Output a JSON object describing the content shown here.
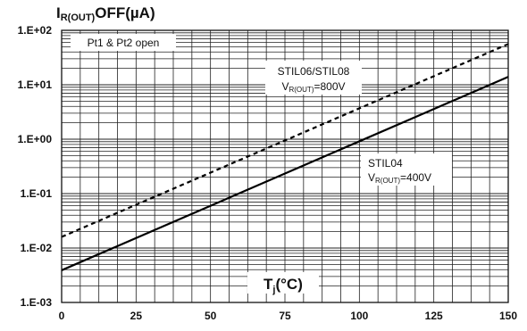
{
  "chart_data": {
    "type": "line",
    "ylabel_main": "I",
    "ylabel_sub": "R(OUT)",
    "ylabel_rest": "OFF(µA)",
    "xlabel_main": "T",
    "xlabel_sub": "j",
    "xlabel_rest": "(°C)",
    "x_ticks": [
      "0",
      "25",
      "50",
      "75",
      "100",
      "125",
      "150"
    ],
    "y_ticks": [
      "1.E+02",
      "1.E+01",
      "1.E+00",
      "1.E-01",
      "1.E-02",
      "1.E-03"
    ],
    "xlim": [
      0,
      150
    ],
    "ylim": [
      0.001,
      100
    ],
    "y_scale": "log",
    "grid": true,
    "series": [
      {
        "name": "STIL06/STIL08",
        "style": "dashed",
        "x": [
          0,
          150
        ],
        "y": [
          0.016,
          56
        ]
      },
      {
        "name": "STIL04",
        "style": "solid",
        "x": [
          0,
          150
        ],
        "y": [
          0.0039,
          14
        ]
      }
    ],
    "annotations": {
      "open_note": "Pt1 & Pt2 open",
      "dashed_label_1": "STIL06/STIL08",
      "dashed_label_2_main": "V",
      "dashed_label_2_sub": "R(OUT)",
      "dashed_label_2_rest": "=800V",
      "solid_label_1": "STIL04",
      "solid_label_2_main": "V",
      "solid_label_2_sub": "R(OUT)",
      "solid_label_2_rest": "=400V"
    }
  }
}
